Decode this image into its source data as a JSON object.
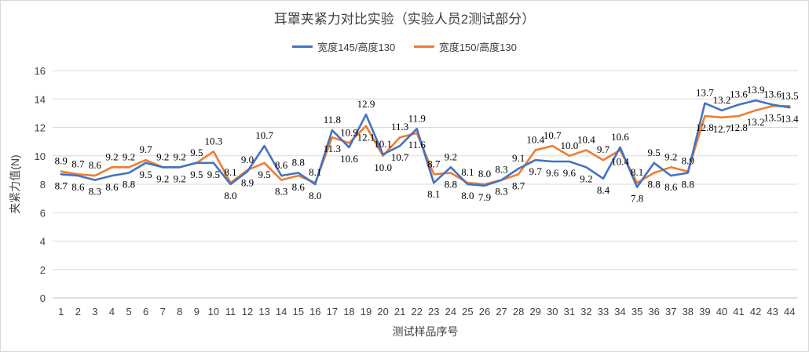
{
  "chart_data": {
    "type": "line",
    "title": "耳罩夹紧力对比实验（实验人员2测试部分）",
    "xlabel": "测试样品序号",
    "ylabel": "夹紧力值(N)",
    "ylim": [
      0,
      16
    ],
    "yticks": [
      0,
      2,
      4,
      6,
      8,
      10,
      12,
      14,
      16
    ],
    "grid": true,
    "legend_position": "top",
    "categories": [
      "1",
      "2",
      "3",
      "4",
      "5",
      "6",
      "7",
      "8",
      "9",
      "10",
      "11",
      "12",
      "13",
      "14",
      "15",
      "16",
      "17",
      "18",
      "19",
      "20",
      "21",
      "22",
      "23",
      "24",
      "25",
      "26",
      "27",
      "28",
      "29",
      "30",
      "31",
      "32",
      "33",
      "34",
      "35",
      "36",
      "37",
      "38",
      "39",
      "40",
      "41",
      "42",
      "43",
      "44"
    ],
    "series": [
      {
        "name": "宽度145/高度130",
        "color": "#4472c4",
        "values": [
          8.7,
          8.6,
          8.3,
          8.6,
          8.8,
          9.5,
          9.2,
          9.2,
          9.5,
          9.5,
          8.0,
          8.9,
          10.7,
          8.6,
          8.8,
          8.0,
          11.8,
          10.6,
          12.9,
          10.1,
          10.7,
          11.9,
          8.1,
          9.2,
          8.0,
          7.9,
          8.3,
          9.1,
          9.7,
          9.6,
          9.6,
          9.2,
          8.4,
          10.6,
          7.8,
          9.5,
          8.6,
          8.8,
          13.7,
          13.2,
          13.6,
          13.9,
          13.6,
          13.4
        ]
      },
      {
        "name": "宽度150/高度130",
        "color": "#ed7d31",
        "values": [
          8.9,
          8.7,
          8.6,
          9.2,
          9.2,
          9.7,
          9.2,
          9.2,
          9.5,
          10.3,
          8.1,
          9.0,
          9.5,
          8.3,
          8.6,
          8.1,
          11.3,
          10.9,
          12.1,
          10.0,
          11.3,
          11.6,
          8.7,
          8.8,
          8.1,
          8.0,
          8.3,
          8.7,
          10.4,
          10.7,
          10.0,
          10.4,
          9.7,
          10.4,
          8.1,
          8.8,
          9.2,
          8.9,
          12.8,
          12.7,
          12.8,
          13.2,
          13.5,
          13.5
        ]
      }
    ],
    "data_labels": [
      [
        "8.7",
        "8.6",
        "8.3",
        "8.6",
        "8.8",
        "9.5",
        "9.2",
        "9.2",
        "9.5",
        "9.5",
        "8.0",
        "8.9",
        "10.7",
        "8.6",
        "8.8",
        "8.0",
        "11.8",
        "10.6",
        "12.9",
        "10.1",
        "10.7",
        "11.9",
        "8.1",
        "9.2",
        "8.0",
        "7.9",
        "8.3",
        "9.1",
        "9.7",
        "9.6",
        "9.6",
        "9.2",
        "8.4",
        "10.6",
        "7.8",
        "9.5",
        "8.6",
        "8.8",
        "13.7",
        "13.2",
        "13.6",
        "13.9",
        "13.6",
        "13.4"
      ],
      [
        "8.9",
        "8.7",
        "8.6",
        "9.2",
        "9.2",
        "9.7",
        "9.2",
        "9.2",
        "9.5",
        "10.3",
        "8.1",
        "9.0",
        "9.5",
        "8.3",
        "8.6",
        "8.1",
        "11.3",
        "10.9",
        "12.1",
        "10.0",
        "11.3",
        "11.6",
        "8.7",
        "8.8",
        "8.1",
        "8.0",
        "8.3",
        "8.7",
        "10.4",
        "10.7",
        "10.0",
        "10.4",
        "9.7",
        "10.4",
        "8.1",
        "8.8",
        "9.2",
        "8.9",
        "12.8",
        "12.7",
        "12.8",
        "13.2",
        "13.5",
        "13.5"
      ]
    ]
  }
}
